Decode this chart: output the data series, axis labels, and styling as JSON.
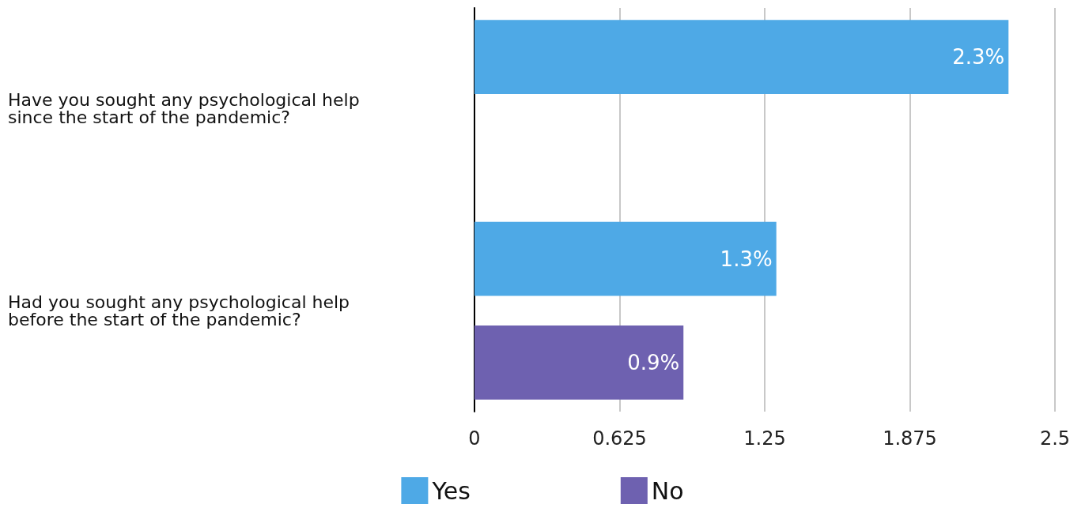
{
  "chart_data": {
    "type": "bar",
    "orientation": "horizontal",
    "categories": [
      "Have you sought any psychological help since the start of the pandemic?",
      "Had you sought any psychological help before the start of the pandemic?"
    ],
    "series": [
      {
        "name": "Yes",
        "color": "#4ea9e6",
        "values": [
          2.3,
          1.3
        ],
        "value_labels": [
          "2.3%",
          "1.3%"
        ]
      },
      {
        "name": "No",
        "color": "#6e61b0",
        "values": [
          null,
          0.9
        ],
        "value_labels": [
          null,
          "0.9%"
        ]
      }
    ],
    "xlim": [
      0,
      2.5
    ],
    "xticks": [
      0,
      0.625,
      1.25,
      1.875,
      2.5
    ],
    "grid": "x",
    "legend": "bottom"
  }
}
